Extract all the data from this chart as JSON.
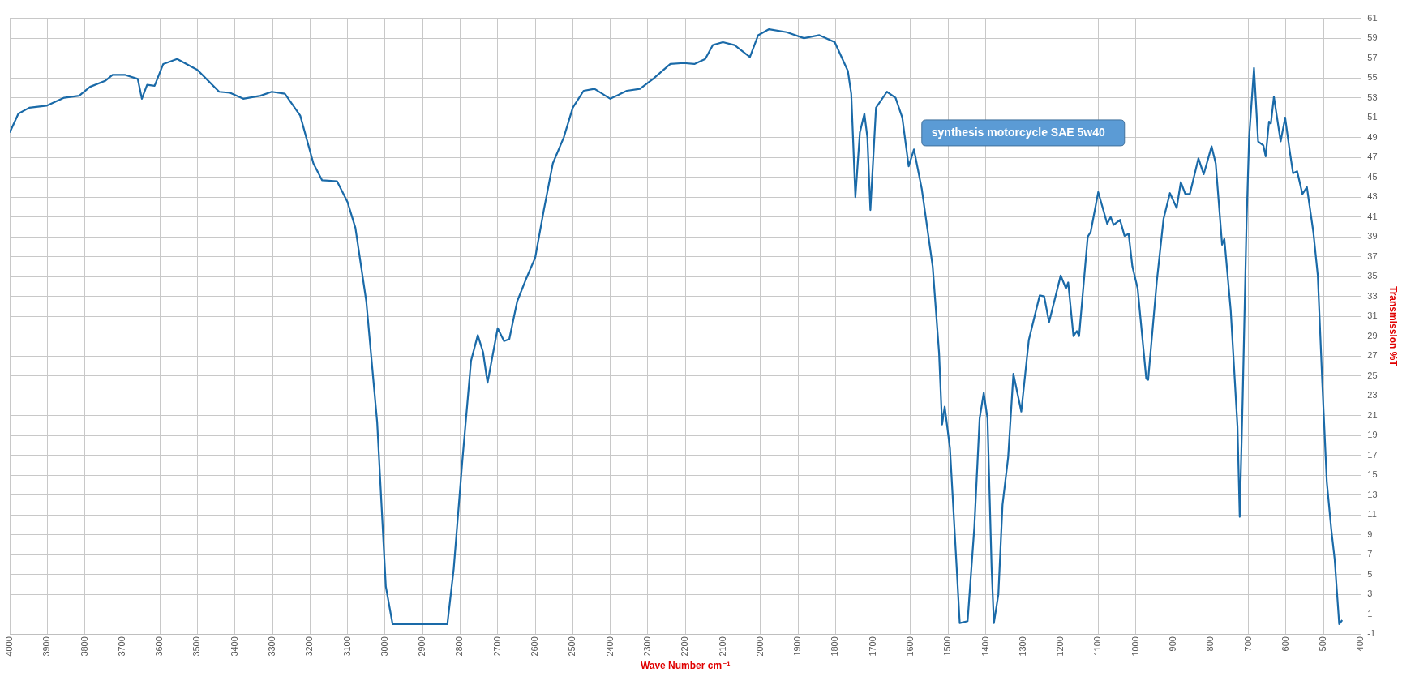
{
  "chart_data": {
    "type": "line",
    "xlabel": "Wave Number cm⁻¹",
    "ylabel": "Transmission %T",
    "annotations": [
      "synthesis motorcycle SAE 5w40"
    ],
    "series": [
      {
        "color": "#1a6aa8",
        "x": [
          4000,
          3977,
          3948,
          3902,
          3855,
          3815,
          3786,
          3746,
          3726,
          3692,
          3659,
          3648,
          3634,
          3614,
          3591,
          3554,
          3500,
          3442,
          3413,
          3378,
          3332,
          3302,
          3267,
          3226,
          3191,
          3168,
          3128,
          3100,
          3079,
          3050,
          3021,
          2998,
          2980,
          2939,
          2900,
          2834,
          2817,
          2794,
          2771,
          2753,
          2739,
          2727,
          2700,
          2683,
          2669,
          2648,
          2625,
          2600,
          2577,
          2553,
          2524,
          2500,
          2471,
          2442,
          2400,
          2356,
          2321,
          2286,
          2240,
          2205,
          2176,
          2147,
          2127,
          2100,
          2069,
          2028,
          2006,
          1977,
          1930,
          1884,
          1843,
          1802,
          1767,
          1758,
          1747,
          1735,
          1723,
          1715,
          1707,
          1692,
          1663,
          1640,
          1622,
          1605,
          1591,
          1570,
          1541,
          1524,
          1516,
          1509,
          1495,
          1477,
          1469,
          1448,
          1430,
          1416,
          1405,
          1395,
          1384,
          1378,
          1366,
          1355,
          1340,
          1326,
          1305,
          1285,
          1256,
          1244,
          1231,
          1200,
          1186,
          1180,
          1166,
          1157,
          1151,
          1128,
          1120,
          1100,
          1076,
          1067,
          1059,
          1042,
          1030,
          1019,
          1009,
          995,
          972,
          967,
          944,
          926,
          909,
          891,
          880,
          868,
          856,
          833,
          819,
          798,
          787,
          770,
          764,
          747,
          729,
          723,
          715,
          705,
          698,
          685,
          674,
          660,
          654,
          645,
          640,
          632,
          614,
          602,
          590,
          581,
          570,
          556,
          544,
          527,
          515,
          503,
          491,
          479,
          470,
          458,
          450
        ],
        "values": [
          49.5,
          51.4,
          52,
          52.2,
          53,
          53.2,
          54.1,
          54.7,
          55.3,
          55.3,
          54.9,
          52.9,
          54.3,
          54.2,
          56.4,
          56.9,
          55.8,
          53.6,
          53.5,
          52.9,
          53.2,
          53.6,
          53.4,
          51.2,
          46.4,
          44.7,
          44.6,
          42.5,
          39.9,
          32.5,
          20.3,
          3.8,
          0,
          0,
          0,
          0,
          5.6,
          16.5,
          26.5,
          29.1,
          27.4,
          24.3,
          29.8,
          28.5,
          28.7,
          32.5,
          34.7,
          36.9,
          41.7,
          46.4,
          49,
          52,
          53.7,
          53.9,
          52.9,
          53.7,
          53.9,
          54.9,
          56.4,
          56.5,
          56.4,
          56.9,
          58.3,
          58.6,
          58.3,
          57.1,
          59.3,
          59.9,
          59.6,
          59,
          59.3,
          58.6,
          55.7,
          53.4,
          43,
          49.5,
          51.4,
          49,
          41.7,
          52,
          53.6,
          53,
          51,
          46.1,
          47.8,
          43.8,
          36,
          27.3,
          20.1,
          21.9,
          17.7,
          5.6,
          0.1,
          0.3,
          9.8,
          20.7,
          23.3,
          20.7,
          5.6,
          0.1,
          3,
          12,
          16.8,
          25.2,
          21.4,
          28.6,
          33.1,
          33,
          30.4,
          35.1,
          33.8,
          34.4,
          29,
          29.5,
          29,
          39,
          39.5,
          43.5,
          40.3,
          41,
          40.2,
          40.7,
          39.1,
          39.3,
          36,
          33.8,
          24.7,
          24.6,
          34.5,
          40.8,
          43.4,
          41.9,
          44.5,
          43.3,
          43.3,
          46.9,
          45.3,
          48.1,
          46.4,
          38.2,
          38.8,
          31.6,
          19.9,
          10.8,
          23,
          40.3,
          49,
          56,
          48.6,
          48.2,
          47.1,
          50.6,
          50.4,
          53.1,
          48.6,
          51,
          47.7,
          45.4,
          45.6,
          43.3,
          44,
          39.5,
          35.1,
          24.3,
          14.3,
          9.5,
          6.5,
          0,
          0.4
        ]
      }
    ],
    "xlim": [
      4000,
      400
    ],
    "xticks": [
      4000,
      3900,
      3800,
      3700,
      3600,
      3500,
      3400,
      3300,
      3200,
      3100,
      3000,
      2900,
      2800,
      2700,
      2600,
      2500,
      2400,
      2300,
      2200,
      2100,
      2000,
      1900,
      1800,
      1700,
      1600,
      1500,
      1400,
      1300,
      1200,
      1100,
      1000,
      900,
      800,
      700,
      600,
      500,
      400
    ],
    "ylim": [
      -1,
      61
    ],
    "yticks": [
      -1,
      1,
      3,
      5,
      7,
      9,
      11,
      13,
      15,
      17,
      19,
      21,
      23,
      25,
      27,
      29,
      31,
      33,
      35,
      37,
      39,
      41,
      43,
      45,
      47,
      49,
      51,
      53,
      55,
      57,
      59,
      61
    ],
    "grid": true,
    "legend": false,
    "marker": "none",
    "line_style": "solid"
  }
}
